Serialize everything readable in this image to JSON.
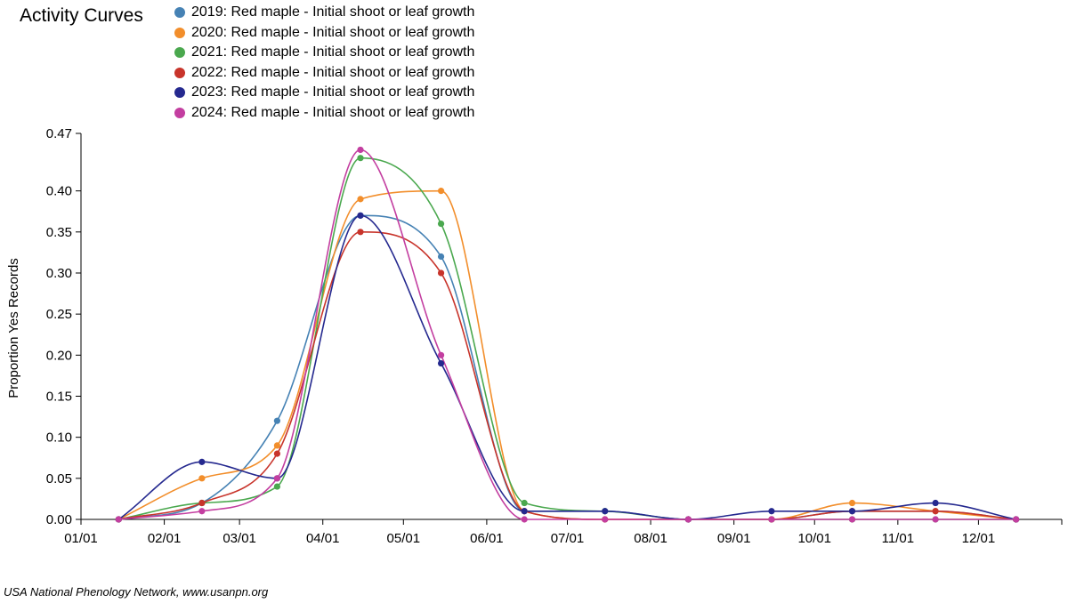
{
  "chart_data": {
    "type": "line",
    "title": "Activity Curves",
    "xlabel": "",
    "ylabel": "Proportion Yes Records",
    "ylim": [
      0,
      0.47
    ],
    "yticks": [
      "0.00",
      "0.05",
      "0.10",
      "0.15",
      "0.20",
      "0.25",
      "0.30",
      "0.35",
      "0.40",
      "0.47"
    ],
    "xticks": [
      "01/01",
      "02/01",
      "03/01",
      "04/01",
      "05/01",
      "06/01",
      "07/01",
      "08/01",
      "09/01",
      "10/01",
      "11/01",
      "12/01"
    ],
    "grid": false,
    "legend_position": "top",
    "x": [
      "01/15",
      "02/15",
      "03/15",
      "04/15",
      "05/15",
      "06/15",
      "07/15",
      "08/15",
      "09/15",
      "10/15",
      "11/15",
      "12/15"
    ],
    "series": [
      {
        "name": "2019: Red maple - Initial shoot or leaf growth",
        "color": "#4682b4",
        "values": [
          0,
          0.02,
          0.12,
          0.37,
          0.32,
          0.01,
          0.01,
          0,
          0,
          0.01,
          0.01,
          0
        ]
      },
      {
        "name": "2020: Red maple - Initial shoot or leaf growth",
        "color": "#f28e2b",
        "values": [
          0,
          0.05,
          0.09,
          0.39,
          0.4,
          0.01,
          0,
          0,
          0,
          0.02,
          0.01,
          0
        ]
      },
      {
        "name": "2021: Red maple - Initial shoot or leaf growth",
        "color": "#4aa84e",
        "values": [
          0,
          0.02,
          0.04,
          0.44,
          0.36,
          0.02,
          0.01,
          0,
          0,
          0,
          0,
          0
        ]
      },
      {
        "name": "2022: Red maple - Initial shoot or leaf growth",
        "color": "#c8342b",
        "values": [
          0,
          0.02,
          0.08,
          0.35,
          0.3,
          0.01,
          0,
          0,
          0,
          0.01,
          0.01,
          0
        ]
      },
      {
        "name": "2023: Red maple - Initial shoot or leaf growth",
        "color": "#25298f",
        "values": [
          0,
          0.07,
          0.05,
          0.37,
          0.19,
          0.01,
          0.01,
          0,
          0.01,
          0.01,
          0.02,
          0
        ]
      },
      {
        "name": "2024: Red maple - Initial shoot or leaf growth",
        "color": "#c33ea0",
        "values": [
          0,
          0.01,
          0.05,
          0.45,
          0.2,
          0,
          0,
          0,
          0,
          0,
          0,
          0
        ]
      }
    ]
  },
  "footer": {
    "credit": "USA National Phenology Network, www.usanpn.org"
  }
}
